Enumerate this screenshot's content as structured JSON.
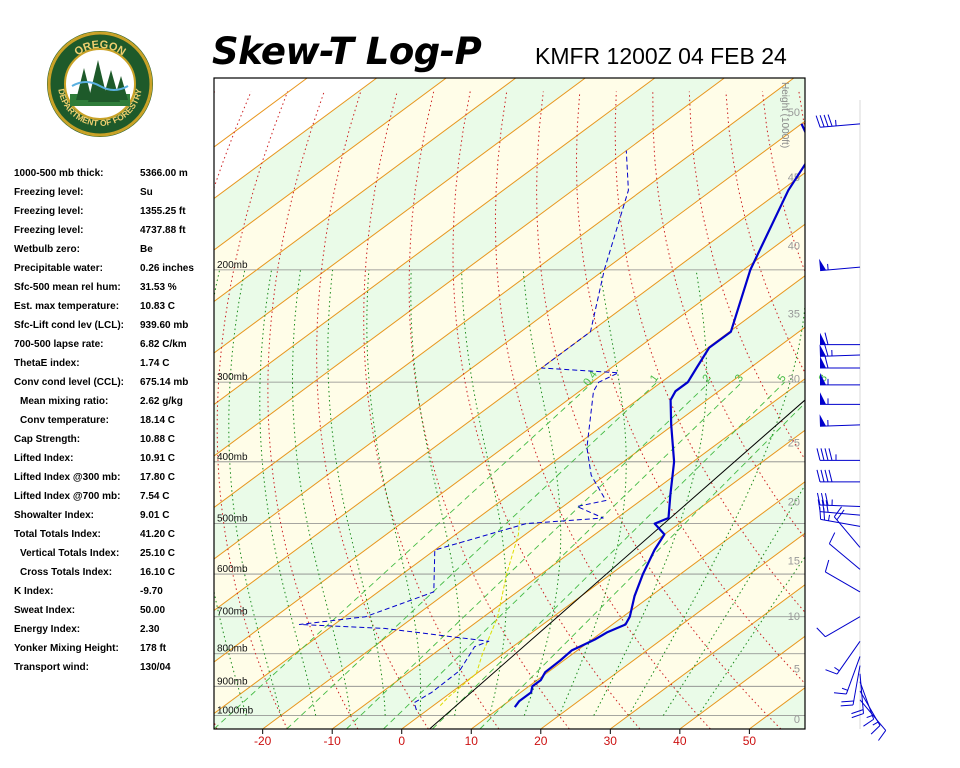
{
  "header": {
    "title": "Skew-T Log-P",
    "station_time": "KMFR 1200Z 04 FEB 24"
  },
  "logo": {
    "top_text": "OREGON",
    "bottom_text": "DEPARTMENT OF FORESTRY"
  },
  "indices": [
    {
      "label": "1000-500 mb thick:",
      "value": "5366.00 m"
    },
    {
      "label": "Freezing level:",
      "value": "Su"
    },
    {
      "label": "Freezing level:",
      "value": "1355.25 ft"
    },
    {
      "label": "Freezing level:",
      "value": "4737.88 ft"
    },
    {
      "label": "Wetbulb zero:",
      "value": "Be"
    },
    {
      "label": "Precipitable water:",
      "value": "0.26 inches"
    },
    {
      "label": "Sfc-500 mean rel hum:",
      "value": "31.53 %"
    },
    {
      "label": "Est. max temperature:",
      "value": "10.83 C"
    },
    {
      "label": "Sfc-Lift cond lev (LCL):",
      "value": "939.60 mb"
    },
    {
      "label": "700-500 lapse rate:",
      "value": "6.82 C/km"
    },
    {
      "label": "ThetaE index:",
      "value": "1.74 C"
    },
    {
      "label": "Conv cond level (CCL):",
      "value": "675.14 mb"
    },
    {
      "label": "Mean mixing ratio:",
      "value": "2.62 g/kg",
      "indent": true
    },
    {
      "label": "Conv temperature:",
      "value": "18.14 C",
      "indent": true
    },
    {
      "label": "Cap Strength:",
      "value": "10.88 C"
    },
    {
      "label": "Lifted Index:",
      "value": "10.91 C"
    },
    {
      "label": "Lifted Index @300 mb:",
      "value": "17.80 C"
    },
    {
      "label": "Lifted Index @700 mb:",
      "value": "7.54 C"
    },
    {
      "label": "Showalter Index:",
      "value": "9.01 C"
    },
    {
      "label": "Total Totals Index:",
      "value": "41.20 C"
    },
    {
      "label": "Vertical Totals Index:",
      "value": "25.10 C",
      "indent": true
    },
    {
      "label": "Cross Totals Index:",
      "value": "16.10 C",
      "indent": true
    },
    {
      "label": "K Index:",
      "value": "-9.70"
    },
    {
      "label": "Sweat Index:",
      "value": "50.00"
    },
    {
      "label": "Energy Index:",
      "value": "2.30"
    },
    {
      "label": "Yonker Mixing Height:",
      "value": "178 ft"
    },
    {
      "label": "Transport wind:",
      "value": "130/04"
    }
  ],
  "chart_data": {
    "type": "line",
    "xlim": [
      -27,
      58
    ],
    "temperature_ticks": [
      -20,
      -10,
      0,
      10,
      20,
      30,
      40,
      50
    ],
    "pressure_levels": [
      {
        "p": 200,
        "label": "200mb"
      },
      {
        "p": 300,
        "label": "300mb"
      },
      {
        "p": 400,
        "label": "400mb"
      },
      {
        "p": 500,
        "label": "500mb"
      },
      {
        "p": 600,
        "label": "600mb"
      },
      {
        "p": 700,
        "label": "700mb"
      },
      {
        "p": 800,
        "label": "800mb"
      },
      {
        "p": 900,
        "label": "900mb"
      },
      {
        "p": 1000,
        "label": "1000mb"
      }
    ],
    "height_axis": {
      "title": "Height (1000ft)",
      "ticks": [
        {
          "label": "0",
          "p": 1012
        },
        {
          "label": "5",
          "p": 844
        },
        {
          "label": "10",
          "p": 698
        },
        {
          "label": "15",
          "p": 571
        },
        {
          "label": "20",
          "p": 462
        },
        {
          "label": "25",
          "p": 373
        },
        {
          "label": "30",
          "p": 296
        },
        {
          "label": "35",
          "p": 234
        },
        {
          "label": "40",
          "p": 183
        },
        {
          "label": "45",
          "p": 143
        },
        {
          "label": "50",
          "p": 113
        }
      ]
    },
    "mixing_ratio_labels": [
      {
        "label": "0.4",
        "w": 0.4
      },
      {
        "label": "1",
        "w": 1
      },
      {
        "label": "2",
        "w": 2
      },
      {
        "label": "3",
        "w": 3
      },
      {
        "label": "5",
        "w": 5
      },
      {
        "label": "8",
        "w": 8
      }
    ],
    "temperature_profile": {
      "name": "Temperature",
      "color": "#0000cc",
      "points": [
        {
          "p": 970,
          "t": 12
        },
        {
          "p": 950,
          "t": 11.5
        },
        {
          "p": 920,
          "t": 11.5
        },
        {
          "p": 900,
          "t": 10.5
        },
        {
          "p": 880,
          "t": 10.5
        },
        {
          "p": 855,
          "t": 9.6
        },
        {
          "p": 820,
          "t": 9.5
        },
        {
          "p": 790,
          "t": 9.2
        },
        {
          "p": 780,
          "t": 9.6
        },
        {
          "p": 760,
          "t": 10.4
        },
        {
          "p": 740,
          "t": 10.8
        },
        {
          "p": 720,
          "t": 11.9
        },
        {
          "p": 700,
          "t": 11
        },
        {
          "p": 650,
          "t": 7.7
        },
        {
          "p": 600,
          "t": 4.6
        },
        {
          "p": 550,
          "t": 1.6
        },
        {
          "p": 520,
          "t": 0
        },
        {
          "p": 500,
          "t": -3.5
        },
        {
          "p": 490,
          "t": -2.6
        },
        {
          "p": 450,
          "t": -6.9
        },
        {
          "p": 400,
          "t": -12.7
        },
        {
          "p": 350,
          "t": -20.3
        },
        {
          "p": 320,
          "t": -25.2
        },
        {
          "p": 310,
          "t": -26.2
        },
        {
          "p": 300,
          "t": -26.2
        },
        {
          "p": 285,
          "t": -27.7
        },
        {
          "p": 265,
          "t": -29.8
        },
        {
          "p": 250,
          "t": -29.8
        },
        {
          "p": 200,
          "t": -39
        },
        {
          "p": 150,
          "t": -49
        },
        {
          "p": 130,
          "t": -53
        },
        {
          "p": 118,
          "t": -60
        }
      ]
    },
    "dewpoint_profile": {
      "name": "Dew point",
      "color": "#0000cc",
      "style": "dashed",
      "points": [
        {
          "p": 980,
          "t": -1.6
        },
        {
          "p": 955,
          "t": -3.3
        },
        {
          "p": 920,
          "t": -2.8
        },
        {
          "p": 850,
          "t": -3
        },
        {
          "p": 780,
          "t": -5.5
        },
        {
          "p": 765,
          "t": -4.5
        },
        {
          "p": 730,
          "t": -22
        },
        {
          "p": 720,
          "t": -35
        },
        {
          "p": 700,
          "t": -27
        },
        {
          "p": 640,
          "t": -22
        },
        {
          "p": 550,
          "t": -30
        },
        {
          "p": 500,
          "t": -22
        },
        {
          "p": 490,
          "t": -12
        },
        {
          "p": 470,
          "t": -18
        },
        {
          "p": 460,
          "t": -15
        },
        {
          "p": 420,
          "t": -22
        },
        {
          "p": 380,
          "t": -28
        },
        {
          "p": 310,
          "t": -38
        },
        {
          "p": 300,
          "t": -39
        },
        {
          "p": 290,
          "t": -38
        },
        {
          "p": 285,
          "t": -50
        },
        {
          "p": 250,
          "t": -50
        },
        {
          "p": 200,
          "t": -60
        },
        {
          "p": 150,
          "t": -72
        },
        {
          "p": 130,
          "t": -80
        }
      ]
    },
    "parcel_path": {
      "name": "Parcel",
      "color": "#dddd00",
      "style": "dashed",
      "points": [
        {
          "p": 965,
          "t": 1
        },
        {
          "p": 935,
          "t": 0.5
        },
        {
          "p": 860,
          "t": 0
        },
        {
          "p": 800,
          "t": -3
        },
        {
          "p": 700,
          "t": -8
        },
        {
          "p": 600,
          "t": -15
        },
        {
          "p": 520,
          "t": -21
        },
        {
          "p": 490,
          "t": -24
        }
      ]
    },
    "wind_barbs": [
      {
        "p": 945,
        "dir": 140,
        "spd": 10
      },
      {
        "p": 915,
        "dir": 150,
        "spd": 15
      },
      {
        "p": 885,
        "dir": 160,
        "spd": 15
      },
      {
        "p": 860,
        "dir": 175,
        "spd": 20
      },
      {
        "p": 835,
        "dir": 190,
        "spd": 20
      },
      {
        "p": 808,
        "dir": 200,
        "spd": 15
      },
      {
        "p": 765,
        "dir": 215,
        "spd": 15
      },
      {
        "p": 700,
        "dir": 240,
        "spd": 10
      },
      {
        "p": 640,
        "dir": 300,
        "spd": 10
      },
      {
        "p": 590,
        "dir": 310,
        "spd": 10
      },
      {
        "p": 545,
        "dir": 320,
        "spd": 20
      },
      {
        "p": 505,
        "dir": 280,
        "spd": 25
      },
      {
        "p": 485,
        "dir": 275,
        "spd": 30
      },
      {
        "p": 470,
        "dir": 272,
        "spd": 35
      },
      {
        "p": 430,
        "dir": 270,
        "spd": 40
      },
      {
        "p": 398,
        "dir": 270,
        "spd": 45
      },
      {
        "p": 350,
        "dir": 268,
        "spd": 55
      },
      {
        "p": 325,
        "dir": 270,
        "spd": 55
      },
      {
        "p": 303,
        "dir": 270,
        "spd": 55
      },
      {
        "p": 285,
        "dir": 270,
        "spd": 60
      },
      {
        "p": 272,
        "dir": 268,
        "spd": 65
      },
      {
        "p": 262,
        "dir": 270,
        "spd": 60
      },
      {
        "p": 198,
        "dir": 265,
        "spd": 55
      },
      {
        "p": 118,
        "dir": 265,
        "spd": 45
      }
    ]
  }
}
